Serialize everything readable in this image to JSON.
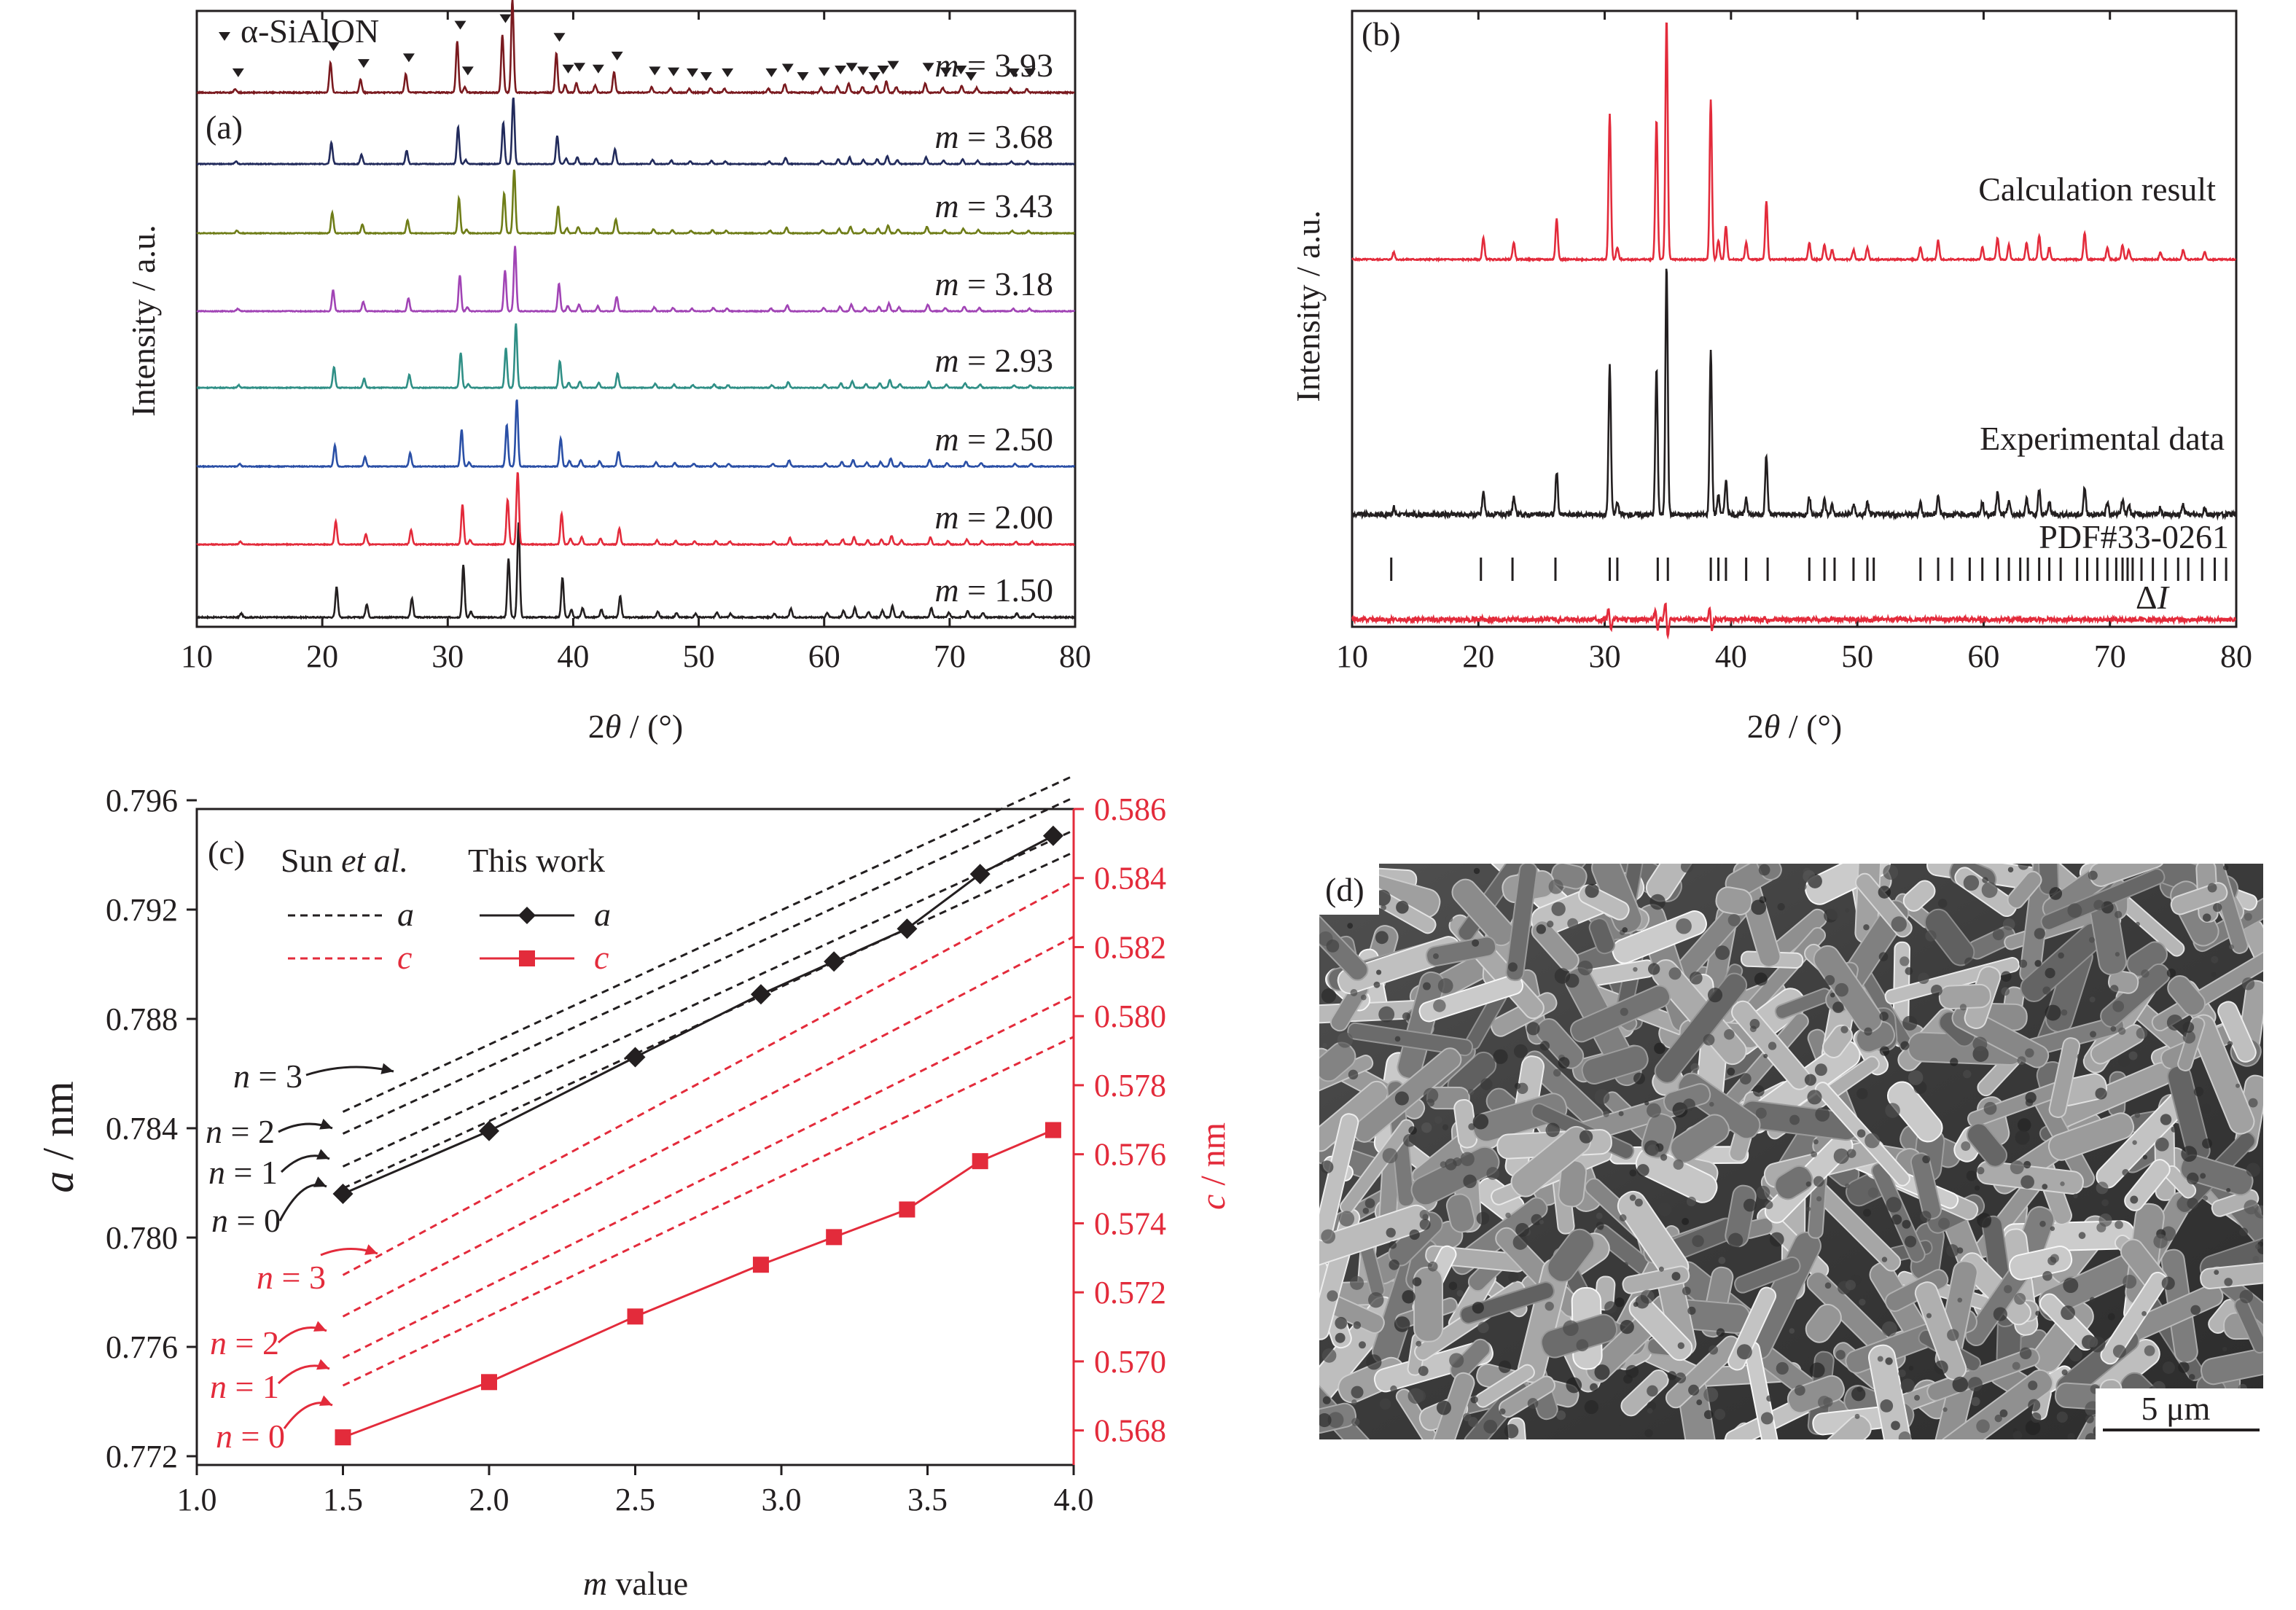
{
  "colors": {
    "red": "#e32b3b",
    "black": "#231f20",
    "series_a": [
      "#231f20",
      "#e32b3b",
      "#2a4fa6",
      "#2f8f86",
      "#a144b5",
      "#6f7d18",
      "#222b5c",
      "#7a1a1f"
    ]
  },
  "panel_a": {
    "label": "(a)",
    "legend": "α-SiAlON",
    "legend_icon": "down-triangle-marker",
    "ylabel": "Intensity / a.u.",
    "xlabel_italic": "θ",
    "xlabel_pre": "2",
    "xlabel_post": " / (°)",
    "xticks": [
      "10",
      "20",
      "30",
      "40",
      "50",
      "60",
      "70",
      "80"
    ],
    "traces": [
      {
        "m": "1.50",
        "color": "#231f20"
      },
      {
        "m": "2.00",
        "color": "#e32b3b"
      },
      {
        "m": "2.50",
        "color": "#2a4fa6"
      },
      {
        "m": "2.93",
        "color": "#2f8f86"
      },
      {
        "m": "3.18",
        "color": "#a144b5"
      },
      {
        "m": "3.43",
        "color": "#6f7d18"
      },
      {
        "m": "3.68",
        "color": "#222b5c"
      },
      {
        "m": "3.93",
        "color": "#7a1a1f"
      }
    ]
  },
  "panel_b": {
    "label": "(b)",
    "ylabel": "Intensity / a.u.",
    "xticks": [
      "10",
      "20",
      "30",
      "40",
      "50",
      "60",
      "70",
      "80"
    ],
    "calc_label": "Calculation result",
    "exp_label": "Experimental data",
    "pdf_label": "PDF#33-0261",
    "diff_label": "Δ",
    "diff_label_italic": "I"
  },
  "panel_c": {
    "label": "(c)",
    "legend_sun": "Sun ",
    "legend_sun_italic": "et al.",
    "legend_this": "This work",
    "legend_a": "a",
    "legend_c": "c",
    "ylabel_left_italic": "a",
    "ylabel_left": " / nm",
    "ylabel_right_italic": "c",
    "ylabel_right": " / nm",
    "xlabel_italic": "m",
    "xlabel": " value",
    "xticks": [
      "1.0",
      "1.5",
      "2.0",
      "2.5",
      "3.0",
      "3.5",
      "4.0"
    ],
    "yticks_left": [
      "0.772",
      "0.776",
      "0.780",
      "0.784",
      "0.788",
      "0.792",
      "0.796"
    ],
    "yticks_right": [
      "0.568",
      "0.570",
      "0.572",
      "0.574",
      "0.576",
      "0.578",
      "0.580",
      "0.582",
      "0.584",
      "0.586"
    ],
    "n_labels_black": [
      "n = 3",
      "n = 2",
      "n = 1",
      "n = 0"
    ],
    "n_labels_red": [
      "n = 3",
      "n = 2",
      "n = 1",
      "n = 0"
    ]
  },
  "panel_d": {
    "label": "(d)",
    "scale_bar": "5 μm"
  },
  "chart_data": [
    {
      "type": "line",
      "panel": "a",
      "title": "",
      "xlabel": "2θ / (°)",
      "ylabel": "Intensity / a.u.",
      "xlim": [
        10,
        80
      ],
      "series": [
        {
          "name": "m = 1.50"
        },
        {
          "name": "m = 2.00"
        },
        {
          "name": "m = 2.50"
        },
        {
          "name": "m = 2.93"
        },
        {
          "name": "m = 3.18"
        },
        {
          "name": "m = 3.43"
        },
        {
          "name": "m = 3.68"
        },
        {
          "name": "m = 3.93"
        }
      ],
      "peaks": [
        {
          "x": 13.3,
          "h": 0.04
        },
        {
          "x": 20.9,
          "h": 0.32
        },
        {
          "x": 23.3,
          "h": 0.14
        },
        {
          "x": 26.9,
          "h": 0.2
        },
        {
          "x": 31.0,
          "h": 0.55
        },
        {
          "x": 31.6,
          "h": 0.06
        },
        {
          "x": 34.6,
          "h": 0.62
        },
        {
          "x": 35.4,
          "h": 1.0
        },
        {
          "x": 38.9,
          "h": 0.42
        },
        {
          "x": 39.6,
          "h": 0.08
        },
        {
          "x": 40.5,
          "h": 0.1
        },
        {
          "x": 42.0,
          "h": 0.08
        },
        {
          "x": 43.5,
          "h": 0.22
        },
        {
          "x": 46.5,
          "h": 0.06
        },
        {
          "x": 48.0,
          "h": 0.05
        },
        {
          "x": 49.5,
          "h": 0.04
        },
        {
          "x": 51.2,
          "h": 0.05
        },
        {
          "x": 52.3,
          "h": 0.04
        },
        {
          "x": 55.8,
          "h": 0.04
        },
        {
          "x": 57.1,
          "h": 0.09
        },
        {
          "x": 60.0,
          "h": 0.05
        },
        {
          "x": 61.3,
          "h": 0.07
        },
        {
          "x": 62.2,
          "h": 0.1
        },
        {
          "x": 63.3,
          "h": 0.06
        },
        {
          "x": 64.4,
          "h": 0.07
        },
        {
          "x": 65.2,
          "h": 0.12
        },
        {
          "x": 66.0,
          "h": 0.06
        },
        {
          "x": 68.3,
          "h": 0.1
        },
        {
          "x": 69.7,
          "h": 0.05
        },
        {
          "x": 71.2,
          "h": 0.07
        },
        {
          "x": 72.4,
          "h": 0.05
        },
        {
          "x": 75.1,
          "h": 0.04
        },
        {
          "x": 76.4,
          "h": 0.04
        }
      ],
      "marker_positions": [
        13.3,
        20.9,
        23.3,
        26.9,
        31.0,
        31.6,
        34.6,
        35.4,
        38.9,
        39.6,
        40.5,
        42.0,
        43.5,
        46.5,
        48.0,
        49.5,
        50.6,
        52.3,
        55.8,
        57.1,
        58.3,
        60.0,
        61.3,
        62.2,
        63.1,
        64.0,
        64.7,
        65.5,
        68.3,
        69.7,
        70.9,
        71.7,
        75.1,
        76.4
      ]
    },
    {
      "type": "line",
      "panel": "b",
      "title": "",
      "xlabel": "2θ / (°)",
      "ylabel": "Intensity / a.u.",
      "xlim": [
        10,
        80
      ],
      "series": [
        {
          "name": "Calculation result"
        },
        {
          "name": "Experimental data"
        },
        {
          "name": "ΔI"
        }
      ],
      "peaks": [
        {
          "x": 13.3,
          "h": 0.03
        },
        {
          "x": 20.4,
          "h": 0.09
        },
        {
          "x": 22.8,
          "h": 0.07
        },
        {
          "x": 26.2,
          "h": 0.17
        },
        {
          "x": 30.4,
          "h": 0.6
        },
        {
          "x": 31.0,
          "h": 0.05
        },
        {
          "x": 34.1,
          "h": 0.58
        },
        {
          "x": 34.9,
          "h": 1.0
        },
        {
          "x": 38.4,
          "h": 0.66
        },
        {
          "x": 39.0,
          "h": 0.08
        },
        {
          "x": 39.6,
          "h": 0.14
        },
        {
          "x": 41.2,
          "h": 0.07
        },
        {
          "x": 42.8,
          "h": 0.24
        },
        {
          "x": 46.2,
          "h": 0.07
        },
        {
          "x": 47.4,
          "h": 0.06
        },
        {
          "x": 48.0,
          "h": 0.04
        },
        {
          "x": 49.7,
          "h": 0.04
        },
        {
          "x": 50.8,
          "h": 0.05
        },
        {
          "x": 55.0,
          "h": 0.05
        },
        {
          "x": 56.4,
          "h": 0.08
        },
        {
          "x": 59.9,
          "h": 0.05
        },
        {
          "x": 61.1,
          "h": 0.09
        },
        {
          "x": 62.0,
          "h": 0.06
        },
        {
          "x": 63.4,
          "h": 0.07
        },
        {
          "x": 64.4,
          "h": 0.1
        },
        {
          "x": 65.2,
          "h": 0.05
        },
        {
          "x": 68.0,
          "h": 0.11
        },
        {
          "x": 69.8,
          "h": 0.05
        },
        {
          "x": 71.0,
          "h": 0.06
        },
        {
          "x": 71.5,
          "h": 0.04
        },
        {
          "x": 74.0,
          "h": 0.03
        },
        {
          "x": 75.8,
          "h": 0.04
        },
        {
          "x": 77.5,
          "h": 0.03
        }
      ],
      "pdf_ticks": [
        13.1,
        20.2,
        22.7,
        26.1,
        30.4,
        31.0,
        34.2,
        35.0,
        38.4,
        39.0,
        39.6,
        41.2,
        42.9,
        46.2,
        47.4,
        48.2,
        49.7,
        50.8,
        51.3,
        55.0,
        56.4,
        57.5,
        58.9,
        59.9,
        61.1,
        62.0,
        62.9,
        63.5,
        64.4,
        65.2,
        66.1,
        67.4,
        68.2,
        69.0,
        69.8,
        70.5,
        71.0,
        71.4,
        71.8,
        72.5,
        73.4,
        74.4,
        75.4,
        76.2,
        77.3,
        78.3,
        79.2
      ]
    },
    {
      "type": "line",
      "panel": "c",
      "title": "",
      "xlabel": "m value",
      "ylabel": "a / nm",
      "ylabel_right": "c / nm",
      "xlim": [
        1.0,
        4.0
      ],
      "ylim": [
        0.772,
        0.796
      ],
      "ylim_right": [
        0.567,
        0.586
      ],
      "series": [
        {
          "name": "a",
          "axis": "left",
          "x": [
            1.5,
            2.0,
            2.5,
            2.93,
            3.18,
            3.43,
            3.68,
            3.93
          ],
          "values": [
            0.7816,
            0.7839,
            0.7866,
            0.7889,
            0.7901,
            0.7913,
            0.7933,
            0.7947
          ]
        },
        {
          "name": "c",
          "axis": "right",
          "x": [
            1.5,
            2.0,
            2.5,
            2.93,
            3.18,
            3.43,
            3.68,
            3.93
          ],
          "values": [
            0.5678,
            0.5694,
            0.5713,
            0.5728,
            0.5736,
            0.5744,
            0.5758,
            0.5767
          ]
        }
      ],
      "sun_a_lines": [
        {
          "n": 0,
          "x": [
            1.5,
            4.0
          ],
          "values": [
            0.7818,
            0.7941
          ]
        },
        {
          "n": 1,
          "x": [
            1.5,
            4.0
          ],
          "values": [
            0.7826,
            0.7949
          ]
        },
        {
          "n": 2,
          "x": [
            1.5,
            4.0
          ],
          "values": [
            0.7838,
            0.7961
          ]
        },
        {
          "n": 3,
          "x": [
            1.5,
            4.0
          ],
          "values": [
            0.7846,
            0.7969
          ]
        }
      ],
      "sun_c_lines": [
        {
          "n": 0,
          "x": [
            1.5,
            4.0
          ],
          "values": [
            0.5693,
            0.5794
          ]
        },
        {
          "n": 1,
          "x": [
            1.5,
            4.0
          ],
          "values": [
            0.5701,
            0.5806
          ]
        },
        {
          "n": 2,
          "x": [
            1.5,
            4.0
          ],
          "values": [
            0.5713,
            0.5823
          ]
        },
        {
          "n": 3,
          "x": [
            1.5,
            4.0
          ],
          "values": [
            0.5725,
            0.5839
          ]
        }
      ]
    }
  ]
}
